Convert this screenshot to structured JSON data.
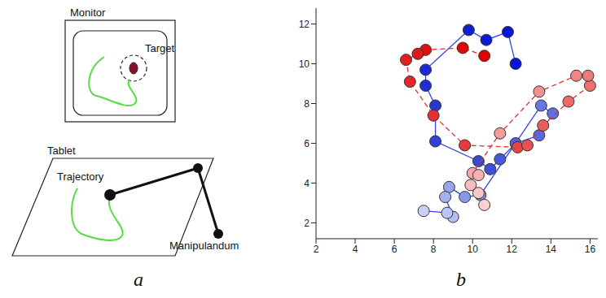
{
  "panel_labels": [
    "a",
    "b"
  ],
  "diagram": {
    "monitor": "Monitor",
    "target": "Target",
    "tablet": "Tablet",
    "trajectory": "Trajectory",
    "manipulandum": "Manipulandum"
  },
  "chart_data": {
    "type": "scatter",
    "xlim": [
      2,
      16.4
    ],
    "ylim": [
      1.2,
      12.8
    ],
    "xticks": [
      2,
      4,
      6,
      8,
      10,
      12,
      14,
      16
    ],
    "yticks": [
      2,
      4,
      6,
      8,
      10,
      12
    ],
    "grid": false,
    "series": [
      {
        "color": "#3344ee",
        "line_style": "solid",
        "marker": "circle",
        "x": [
          12.2,
          11.8,
          10.7,
          9.8,
          7.6,
          7.6,
          8.1,
          8.1,
          10.3,
          10.9,
          11.4,
          12.2,
          13.4,
          14.1,
          13.5,
          10.4,
          9.6,
          8.8,
          8.6,
          9.0,
          8.7,
          7.5
        ],
        "values": [
          10.0,
          11.6,
          11.2,
          11.7,
          9.7,
          8.9,
          7.9,
          6.1,
          5.1,
          4.7,
          5.2,
          6.0,
          6.4,
          7.5,
          7.9,
          3.4,
          3.3,
          3.8,
          3.3,
          2.3,
          2.5,
          2.6
        ],
        "colors": [
          "#0a14d6",
          "#0a14d6",
          "#0d18d4",
          "#1020d0",
          "#1a2ad0",
          "#2030d0",
          "#2838d2",
          "#3040d4",
          "#3848d6",
          "#4050d8",
          "#4858da",
          "#5060dc",
          "#5868de",
          "#6070e0",
          "#6878e0",
          "#7888e4",
          "#8898e8",
          "#98a4ec",
          "#a4b0ee",
          "#b4bef2",
          "#bcc6f4",
          "#c8d0f6"
        ]
      },
      {
        "color": "#e03030",
        "line_style": "dashed",
        "marker": "circle",
        "x": [
          10.6,
          9.5,
          7.6,
          7.2,
          6.6,
          6.8,
          8.0,
          9.6,
          12.3,
          12.8,
          13.6,
          14.9,
          16.0,
          15.9,
          15.3,
          13.4,
          11.4,
          10.0,
          10.3,
          9.9,
          10.3,
          10.6
        ],
        "values": [
          10.4,
          10.8,
          10.7,
          10.5,
          10.2,
          9.1,
          7.4,
          5.9,
          5.8,
          5.9,
          6.9,
          8.1,
          8.9,
          9.4,
          9.4,
          8.6,
          6.5,
          4.5,
          4.4,
          3.9,
          3.5,
          2.9
        ],
        "colors": [
          "#e00000",
          "#e00808",
          "#e01010",
          "#e01818",
          "#e22020",
          "#e42828",
          "#e43030",
          "#e63a3a",
          "#e84444",
          "#ea5050",
          "#ec5c5c",
          "#ee6868",
          "#f07070",
          "#f07a7a",
          "#f28484",
          "#f49090",
          "#f49c9c",
          "#f6a8a8",
          "#f6b2b2",
          "#f8bcbc",
          "#f8c6c6",
          "#f8d0d0"
        ]
      }
    ]
  }
}
